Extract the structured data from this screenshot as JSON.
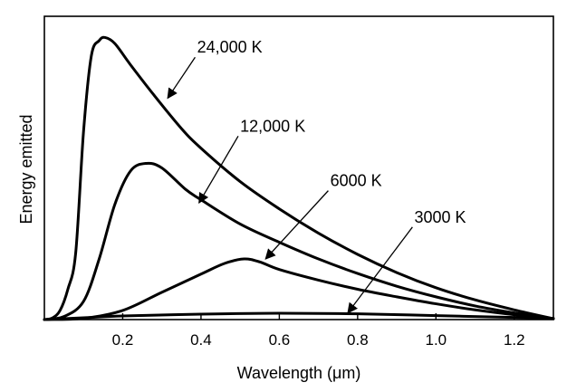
{
  "chart_data": {
    "type": "line",
    "xlabel": "Wavelength (μm)",
    "ylabel": "Energy emitted",
    "xlim": [
      0,
      1.3
    ],
    "ylim": [
      0,
      1.0
    ],
    "x_ticks": [
      0.2,
      0.4,
      0.6,
      0.8,
      1.0,
      1.2
    ],
    "x_tick_labels": [
      "0.2",
      "0.4",
      "0.6",
      "0.8",
      "1.0",
      "1.2"
    ],
    "y_ticks_shown": false,
    "grid": false,
    "series": [
      {
        "name": "24,000 K",
        "peak_x": 0.155,
        "points": [
          [
            0.0,
            0.0
          ],
          [
            0.02,
            0.005
          ],
          [
            0.04,
            0.03
          ],
          [
            0.06,
            0.1
          ],
          [
            0.08,
            0.22
          ],
          [
            0.1,
            0.62
          ],
          [
            0.12,
            0.87
          ],
          [
            0.14,
            0.92
          ],
          [
            0.155,
            0.93
          ],
          [
            0.18,
            0.91
          ],
          [
            0.22,
            0.84
          ],
          [
            0.28,
            0.74
          ],
          [
            0.35,
            0.63
          ],
          [
            0.4,
            0.565
          ],
          [
            0.5,
            0.455
          ],
          [
            0.6,
            0.365
          ],
          [
            0.7,
            0.285
          ],
          [
            0.8,
            0.215
          ],
          [
            0.9,
            0.155
          ],
          [
            1.0,
            0.105
          ],
          [
            1.1,
            0.065
          ],
          [
            1.2,
            0.032
          ],
          [
            1.3,
            0.003
          ]
        ]
      },
      {
        "name": "12,000 K",
        "peak_x": 0.26,
        "points": [
          [
            0.0,
            0.0
          ],
          [
            0.05,
            0.01
          ],
          [
            0.1,
            0.06
          ],
          [
            0.14,
            0.2
          ],
          [
            0.18,
            0.38
          ],
          [
            0.22,
            0.49
          ],
          [
            0.26,
            0.515
          ],
          [
            0.3,
            0.5
          ],
          [
            0.36,
            0.43
          ],
          [
            0.4,
            0.395
          ],
          [
            0.5,
            0.315
          ],
          [
            0.6,
            0.255
          ],
          [
            0.7,
            0.2
          ],
          [
            0.8,
            0.152
          ],
          [
            0.9,
            0.11
          ],
          [
            1.0,
            0.075
          ],
          [
            1.1,
            0.045
          ],
          [
            1.2,
            0.022
          ],
          [
            1.3,
            0.003
          ]
        ]
      },
      {
        "name": "6000 K",
        "peak_x": 0.51,
        "points": [
          [
            0.0,
            0.0
          ],
          [
            0.1,
            0.004
          ],
          [
            0.2,
            0.03
          ],
          [
            0.3,
            0.09
          ],
          [
            0.4,
            0.15
          ],
          [
            0.46,
            0.185
          ],
          [
            0.51,
            0.2
          ],
          [
            0.55,
            0.19
          ],
          [
            0.6,
            0.165
          ],
          [
            0.7,
            0.13
          ],
          [
            0.8,
            0.1
          ],
          [
            0.9,
            0.075
          ],
          [
            1.0,
            0.052
          ],
          [
            1.1,
            0.032
          ],
          [
            1.2,
            0.016
          ],
          [
            1.3,
            0.003
          ]
        ]
      },
      {
        "name": "3000 K",
        "peak_x": 0.6,
        "points": [
          [
            0.0,
            0.0
          ],
          [
            0.1,
            0.006
          ],
          [
            0.2,
            0.012
          ],
          [
            0.4,
            0.018
          ],
          [
            0.6,
            0.021
          ],
          [
            0.8,
            0.019
          ],
          [
            1.0,
            0.013
          ],
          [
            1.2,
            0.007
          ],
          [
            1.3,
            0.004
          ]
        ]
      }
    ],
    "annotations": [
      {
        "text": "24,000 K",
        "series": "24,000 K",
        "label_x": 0.39,
        "label_y": 0.88,
        "arrow_from": [
          0.385,
          0.865
        ],
        "arrow_to": [
          0.315,
          0.73
        ]
      },
      {
        "text": "12,000 K",
        "series": "12,000 K",
        "label_x": 0.5,
        "label_y": 0.62,
        "arrow_from": [
          0.495,
          0.605
        ],
        "arrow_to": [
          0.395,
          0.385
        ]
      },
      {
        "text": "6000 K",
        "series": "6000 K",
        "label_x": 0.73,
        "label_y": 0.44,
        "arrow_from": [
          0.725,
          0.425
        ],
        "arrow_to": [
          0.565,
          0.2
        ]
      },
      {
        "text": "3000 K",
        "series": "3000 K",
        "label_x": 0.945,
        "label_y": 0.32,
        "arrow_from": [
          0.94,
          0.305
        ],
        "arrow_to": [
          0.775,
          0.022
        ]
      }
    ]
  }
}
